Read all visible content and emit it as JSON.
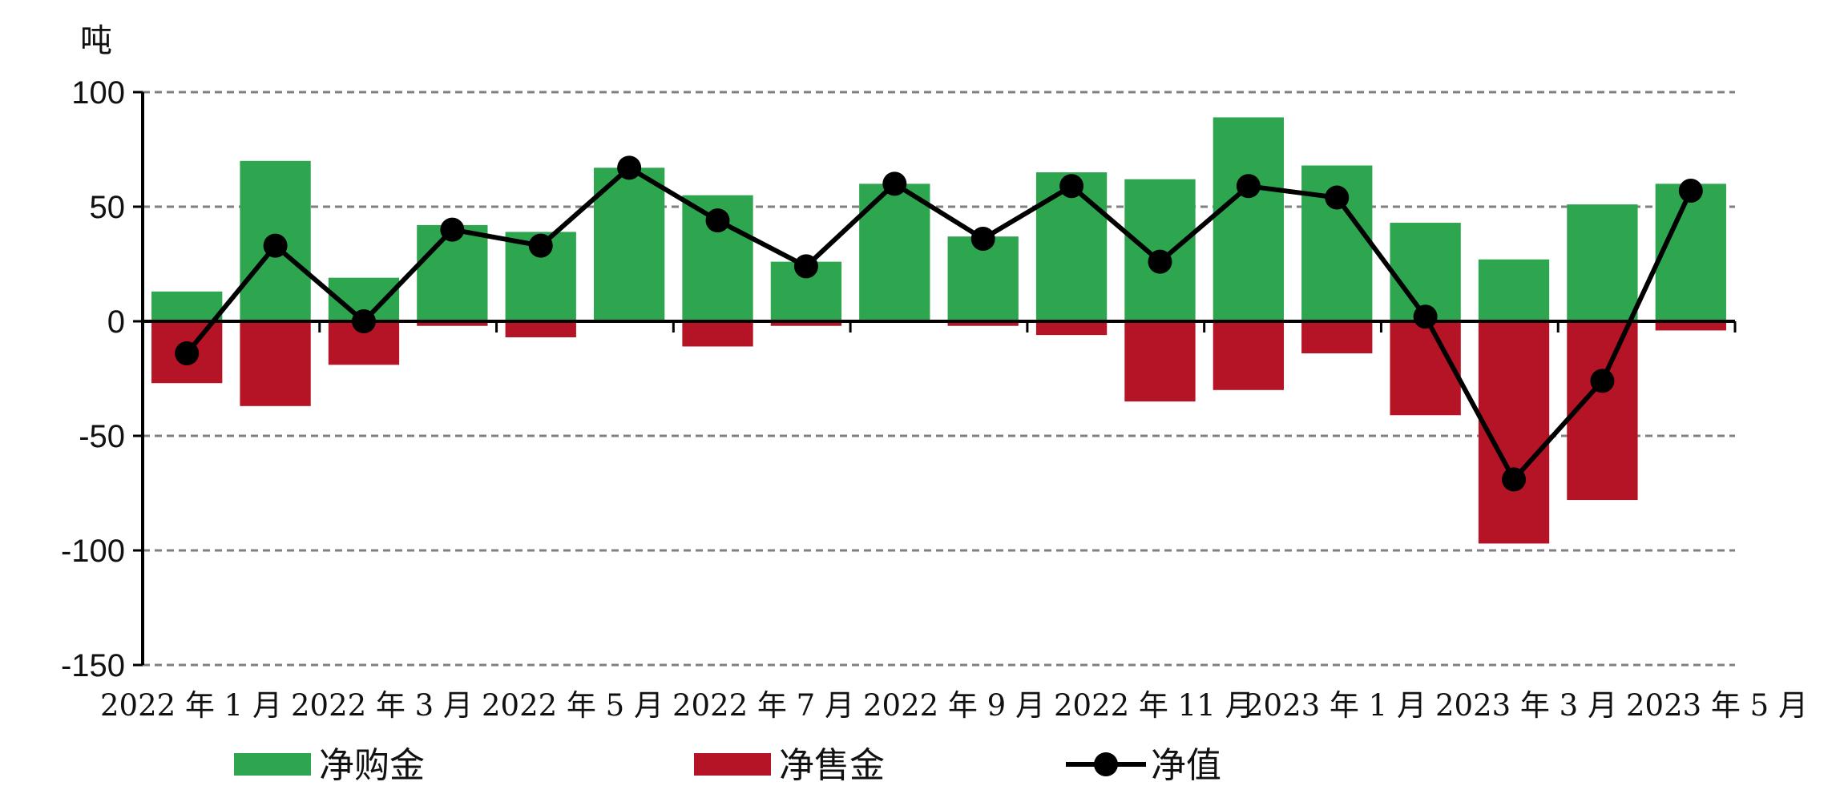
{
  "chart_data": {
    "type": "bar",
    "unit_label": "吨",
    "ylim": [
      -150,
      100
    ],
    "yticks": [
      100,
      50,
      0,
      -50,
      -100,
      -150
    ],
    "ytick_labels": [
      "100",
      "50",
      "0",
      "-50",
      "-100",
      "-150"
    ],
    "grid": true,
    "legend_position": "bottom",
    "x_labels": [
      "2022 年 1 月",
      "2022 年 3 月",
      "2022 年 5 月",
      "2022 年 7 月",
      "2022 年 9 月",
      "2022 年 11 月",
      "2023 年 1 月",
      "2023 年 3 月",
      "2023 年 5 月"
    ],
    "series": [
      {
        "name": "净购金",
        "kind": "bar",
        "color": "#2ea650",
        "values": [
          13,
          70,
          19,
          42,
          39,
          67,
          55,
          26,
          60,
          37,
          65,
          62,
          89,
          68,
          43,
          27,
          51,
          60
        ]
      },
      {
        "name": "净售金",
        "kind": "bar",
        "color": "#b51426",
        "values": [
          -27,
          -37,
          -19,
          -2,
          -7,
          0,
          -11,
          -2,
          0,
          -2,
          -6,
          -35,
          -30,
          -14,
          -41,
          -97,
          -78,
          -4
        ]
      },
      {
        "name": "净值",
        "kind": "line",
        "color": "#000000",
        "values": [
          -14,
          33,
          0,
          40,
          33,
          67,
          44,
          24,
          60,
          36,
          59,
          26,
          59,
          54,
          2,
          -69,
          -26,
          57
        ]
      }
    ]
  }
}
